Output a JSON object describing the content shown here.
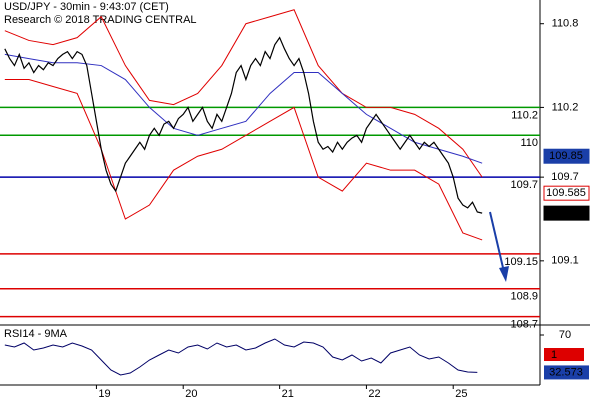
{
  "chart_data": {
    "type": "price",
    "title": "USD/JPY - 30min - 9:43:07 (CET)",
    "subtitle": "Research © 2018 TRADING CENTRAL",
    "ylim": [
      108.64,
      110.97
    ],
    "yticks": [
      109.1,
      109.7,
      110.2,
      110.8
    ],
    "xlim": [
      -1,
      111
    ],
    "xticks": [
      {
        "value": 19,
        "label": "19"
      },
      {
        "value": 37,
        "label": "20"
      },
      {
        "value": 57,
        "label": "21"
      },
      {
        "value": 75,
        "label": "22"
      },
      {
        "value": 93,
        "label": "25"
      }
    ],
    "price": {
      "color": "#000000",
      "values": [
        110.62,
        110.55,
        110.5,
        110.58,
        110.48,
        110.52,
        110.45,
        110.5,
        110.47,
        110.52,
        110.5,
        110.55,
        110.58,
        110.6,
        110.55,
        110.6,
        110.58,
        110.5,
        110.3,
        110.1,
        109.9,
        109.75,
        109.65,
        109.6,
        109.7,
        109.8,
        109.85,
        109.9,
        109.95,
        109.9,
        110.0,
        110.05,
        110.0,
        110.08,
        110.1,
        110.05,
        110.12,
        110.15,
        110.2,
        110.1,
        110.15,
        110.2,
        110.1,
        110.05,
        110.15,
        110.1,
        110.2,
        110.3,
        110.45,
        110.5,
        110.4,
        110.5,
        110.55,
        110.5,
        110.6,
        110.55,
        110.65,
        110.7,
        110.62,
        110.55,
        110.5,
        110.55,
        110.45,
        110.3,
        110.1,
        109.95,
        109.9,
        109.92,
        109.88,
        109.95,
        109.9,
        109.95,
        109.98,
        110.0,
        109.95,
        110.05,
        110.1,
        110.15,
        110.1,
        110.05,
        110.0,
        109.95,
        109.9,
        109.95,
        110.0,
        109.95,
        109.9,
        109.95,
        109.92,
        109.95,
        109.9,
        109.85,
        109.8,
        109.7,
        109.55,
        109.5,
        109.48,
        109.52,
        109.45,
        109.442
      ]
    },
    "bands": {
      "x": [
        0,
        5,
        10,
        15,
        20,
        25,
        30,
        35,
        40,
        45,
        50,
        55,
        60,
        65,
        70,
        75,
        80,
        85,
        90,
        95,
        99
      ],
      "upper": {
        "color": "#e00000",
        "values": [
          110.75,
          110.68,
          110.65,
          110.7,
          110.85,
          110.5,
          110.25,
          110.22,
          110.3,
          110.5,
          110.8,
          110.85,
          110.9,
          110.5,
          110.3,
          110.2,
          110.2,
          110.15,
          110.05,
          109.9,
          109.7
        ]
      },
      "lower": {
        "color": "#e00000",
        "values": [
          110.4,
          110.4,
          110.35,
          110.3,
          109.9,
          109.4,
          109.5,
          109.75,
          109.85,
          109.9,
          110.0,
          110.1,
          110.2,
          109.7,
          109.6,
          109.8,
          109.75,
          109.75,
          109.65,
          109.3,
          109.25
        ]
      },
      "ma": {
        "color": "#3030c0",
        "values": [
          110.58,
          110.55,
          110.52,
          110.52,
          110.5,
          110.4,
          110.2,
          110.05,
          110.0,
          110.05,
          110.1,
          110.3,
          110.45,
          110.45,
          110.3,
          110.15,
          110.05,
          109.95,
          109.9,
          109.85,
          109.8
        ]
      }
    },
    "levels": [
      {
        "value": 110.2,
        "color": "#009900"
      },
      {
        "value": 110,
        "color": "#009900"
      },
      {
        "value": 109.7,
        "color": "#0000aa"
      },
      {
        "value": 109.15,
        "color": "#dd0000"
      },
      {
        "value": 108.9,
        "color": "#dd0000"
      },
      {
        "value": 108.7,
        "color": "#dd0000"
      }
    ],
    "price_boxes": [
      {
        "value": 109.85,
        "color": "#1a3fa8",
        "filled": true
      },
      {
        "value": 109.585,
        "color": "#dd0000",
        "filled": false
      },
      {
        "value": 109.442,
        "color": "#000000",
        "filled": true
      }
    ],
    "rsi": {
      "label": "RSI14 - 9MA",
      "color": "#000066",
      "ylim": [
        20,
        80
      ],
      "yticks": [
        70
      ],
      "x": [
        0,
        2,
        4,
        6,
        8,
        10,
        12,
        14,
        16,
        18,
        20,
        22,
        24,
        26,
        28,
        30,
        32,
        34,
        36,
        38,
        40,
        42,
        44,
        46,
        48,
        50,
        52,
        54,
        56,
        58,
        60,
        62,
        64,
        66,
        68,
        70,
        72,
        74,
        76,
        78,
        80,
        82,
        84,
        86,
        88,
        90,
        92,
        94,
        96,
        98
      ],
      "values": [
        60,
        58,
        62,
        55,
        57,
        60,
        58,
        62,
        59,
        55,
        45,
        35,
        30,
        32,
        38,
        45,
        50,
        55,
        52,
        58,
        60,
        56,
        62,
        58,
        60,
        55,
        57,
        62,
        66,
        60,
        58,
        63,
        62,
        58,
        48,
        45,
        50,
        44,
        47,
        42,
        52,
        55,
        58,
        50,
        46,
        48,
        42,
        35,
        33,
        32.573
      ],
      "box_label": "1",
      "box_color": "#dd0000",
      "value_box_color": "#1a3fa8"
    }
  }
}
